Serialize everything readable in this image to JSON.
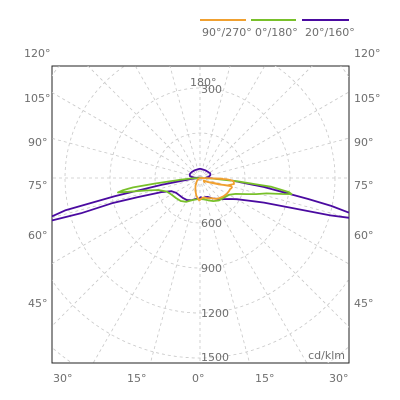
{
  "chart_data": {
    "type": "polar",
    "unit": "cd/klm",
    "legend": {
      "placement": "top-right",
      "items": [
        {
          "name": "90°/270°",
          "color": "#f0a030"
        },
        {
          "name": "0°/180°",
          "color": "#78c02a"
        },
        {
          "name": "20°/160°",
          "color": "#4a0aa0"
        }
      ]
    },
    "radial_ticks": [
      {
        "label": "300",
        "value": 300
      },
      {
        "label": "600",
        "value": 600
      },
      {
        "label": "900",
        "value": 900
      },
      {
        "label": "1200",
        "value": 1200
      },
      {
        "label": "1500",
        "value": 1500
      }
    ],
    "angle_labels_left": [
      "120°",
      "105°",
      "90°",
      "75°",
      "60°",
      "45°"
    ],
    "angle_labels_right": [
      "120°",
      "105°",
      "90°",
      "75°",
      "60°",
      "45°"
    ],
    "bottom_angle_labels": [
      "30°",
      "15°",
      "0°",
      "15°",
      "30°"
    ],
    "top_angle_label": "180°",
    "series": [
      {
        "name": "20°/160°",
        "color": "#4a0aa0",
        "points": [
          [
            -90,
            0
          ],
          [
            -85,
            50
          ],
          [
            -80,
            258
          ],
          [
            -78,
            582
          ],
          [
            -76.5,
            925
          ],
          [
            -75,
            1070
          ],
          [
            -74,
            1033
          ],
          [
            -73.5,
            828
          ],
          [
            -74,
            612
          ],
          [
            -73,
            437
          ],
          [
            -70,
            274
          ],
          [
            -65,
            209
          ],
          [
            -58,
            187
          ],
          [
            -50,
            179
          ],
          [
            -40,
            175
          ],
          [
            -30,
            171
          ],
          [
            -20,
            157
          ],
          [
            -10,
            141
          ],
          [
            -5,
            137
          ],
          [
            -2,
            144
          ],
          [
            0,
            132
          ],
          [
            3,
            128
          ],
          [
            7,
            138
          ],
          [
            10,
            137
          ],
          [
            15,
            132
          ],
          [
            22,
            136
          ],
          [
            30,
            155
          ],
          [
            40,
            183
          ],
          [
            48,
            210
          ],
          [
            55,
            244
          ],
          [
            60,
            283
          ],
          [
            65,
            356
          ],
          [
            69,
            457
          ],
          [
            72,
            650
          ],
          [
            74,
            904
          ],
          [
            75,
            1023
          ],
          [
            76.5,
            1072
          ],
          [
            78,
            894
          ],
          [
            79,
            735
          ],
          [
            82,
            430
          ],
          [
            86,
            195
          ],
          [
            89,
            76
          ],
          [
            91,
            38
          ],
          [
            95,
            48
          ],
          [
            100,
            62
          ],
          [
            105,
            71
          ],
          [
            110,
            73
          ],
          [
            115,
            75
          ],
          [
            120,
            70
          ],
          [
            125,
            68
          ],
          [
            145,
            63
          ],
          [
            170,
            60
          ],
          [
            180,
            61
          ],
          [
            -170,
            60
          ],
          [
            -145,
            63
          ],
          [
            -130,
            66
          ],
          [
            -120,
            70
          ],
          [
            -110,
            73
          ],
          [
            -100,
            68
          ],
          [
            -93,
            40
          ]
        ]
      },
      {
        "name": "0°/180°",
        "color": "#78c02a",
        "points": [
          [
            -90,
            0
          ],
          [
            -87,
            55
          ],
          [
            -85,
            125
          ],
          [
            -83,
            300
          ],
          [
            -82,
            450
          ],
          [
            -81,
            520
          ],
          [
            -80,
            555
          ],
          [
            -79,
            480
          ],
          [
            -77,
            370
          ],
          [
            -74,
            290
          ],
          [
            -68,
            240
          ],
          [
            -60,
            220
          ],
          [
            -50,
            208
          ],
          [
            -40,
            200
          ],
          [
            -30,
            183
          ],
          [
            -20,
            158
          ],
          [
            -10,
            145
          ],
          [
            0,
            140
          ],
          [
            10,
            145
          ],
          [
            20,
            158
          ],
          [
            30,
            178
          ],
          [
            40,
            196
          ],
          [
            50,
            205
          ],
          [
            60,
            224
          ],
          [
            66,
            260
          ],
          [
            71,
            330
          ],
          [
            74,
            390
          ],
          [
            77,
            455
          ],
          [
            79,
            560
          ],
          [
            80,
            620
          ],
          [
            81,
            600
          ],
          [
            83,
            480
          ],
          [
            85,
            245
          ],
          [
            88,
            70
          ],
          [
            90,
            0
          ]
        ]
      },
      {
        "name": "90°/270°",
        "color": "#f0a030",
        "points": [
          [
            -90,
            0
          ],
          [
            -60,
            12
          ],
          [
            -45,
            30
          ],
          [
            -30,
            60
          ],
          [
            -20,
            90
          ],
          [
            -12,
            120
          ],
          [
            -5,
            140
          ],
          [
            -2,
            150
          ],
          [
            0,
            146
          ],
          [
            5,
            135
          ],
          [
            10,
            132
          ],
          [
            18,
            140
          ],
          [
            25,
            149
          ],
          [
            30,
            155
          ],
          [
            36,
            172
          ],
          [
            43,
            185
          ],
          [
            52,
            198
          ],
          [
            60,
            208
          ],
          [
            66,
            212
          ],
          [
            70,
            214
          ],
          [
            72,
            220
          ],
          [
            74,
            222
          ],
          [
            75,
            215
          ],
          [
            73,
            150
          ],
          [
            70,
            92
          ],
          [
            65,
            64
          ],
          [
            58,
            40
          ],
          [
            52,
            32
          ],
          [
            46,
            40
          ],
          [
            52,
            40
          ],
          [
            58,
            30
          ],
          [
            62,
            52
          ],
          [
            66,
            75
          ],
          [
            71,
            128
          ],
          [
            75,
            190
          ],
          [
            80,
            230
          ],
          [
            84,
            226
          ],
          [
            86,
            209
          ],
          [
            87,
            183
          ],
          [
            87.5,
            137
          ],
          [
            87.5,
            100
          ],
          [
            87.7,
            127
          ],
          [
            88.5,
            150
          ],
          [
            90,
            0
          ]
        ]
      }
    ]
  }
}
